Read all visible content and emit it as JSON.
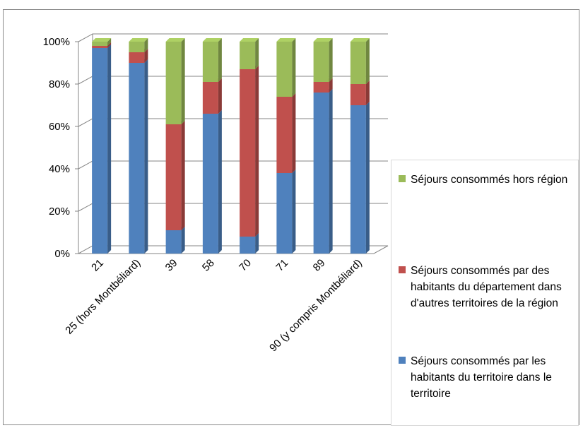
{
  "chart_data": {
    "type": "bar",
    "stacked": true,
    "percent": true,
    "title": "",
    "xlabel": "",
    "ylabel": "",
    "ylim": [
      0,
      100
    ],
    "yticks": [
      "0%",
      "20%",
      "40%",
      "60%",
      "80%",
      "100%"
    ],
    "categories": [
      "21",
      "25 (hors Montbéliard)",
      "39",
      "58",
      "70",
      "71",
      "89",
      "90 (y compris Montbéliard)"
    ],
    "series": [
      {
        "name": "Séjours consommés par les habitants du territoire dans le territoire",
        "color": "#4f81bd",
        "values": [
          97,
          90,
          11,
          66,
          8,
          38,
          76,
          70
        ]
      },
      {
        "name": "Séjours consommés par des habitants du département dans d'autres territoires de la région",
        "color": "#c0504d",
        "values": [
          1,
          5,
          50,
          15,
          79,
          36,
          5,
          10
        ]
      },
      {
        "name": "Séjours consommés hors région",
        "color": "#9bbb59",
        "values": [
          2,
          5,
          39,
          19,
          13,
          26,
          19,
          20
        ]
      }
    ],
    "legend_position": "right",
    "grid": true
  }
}
